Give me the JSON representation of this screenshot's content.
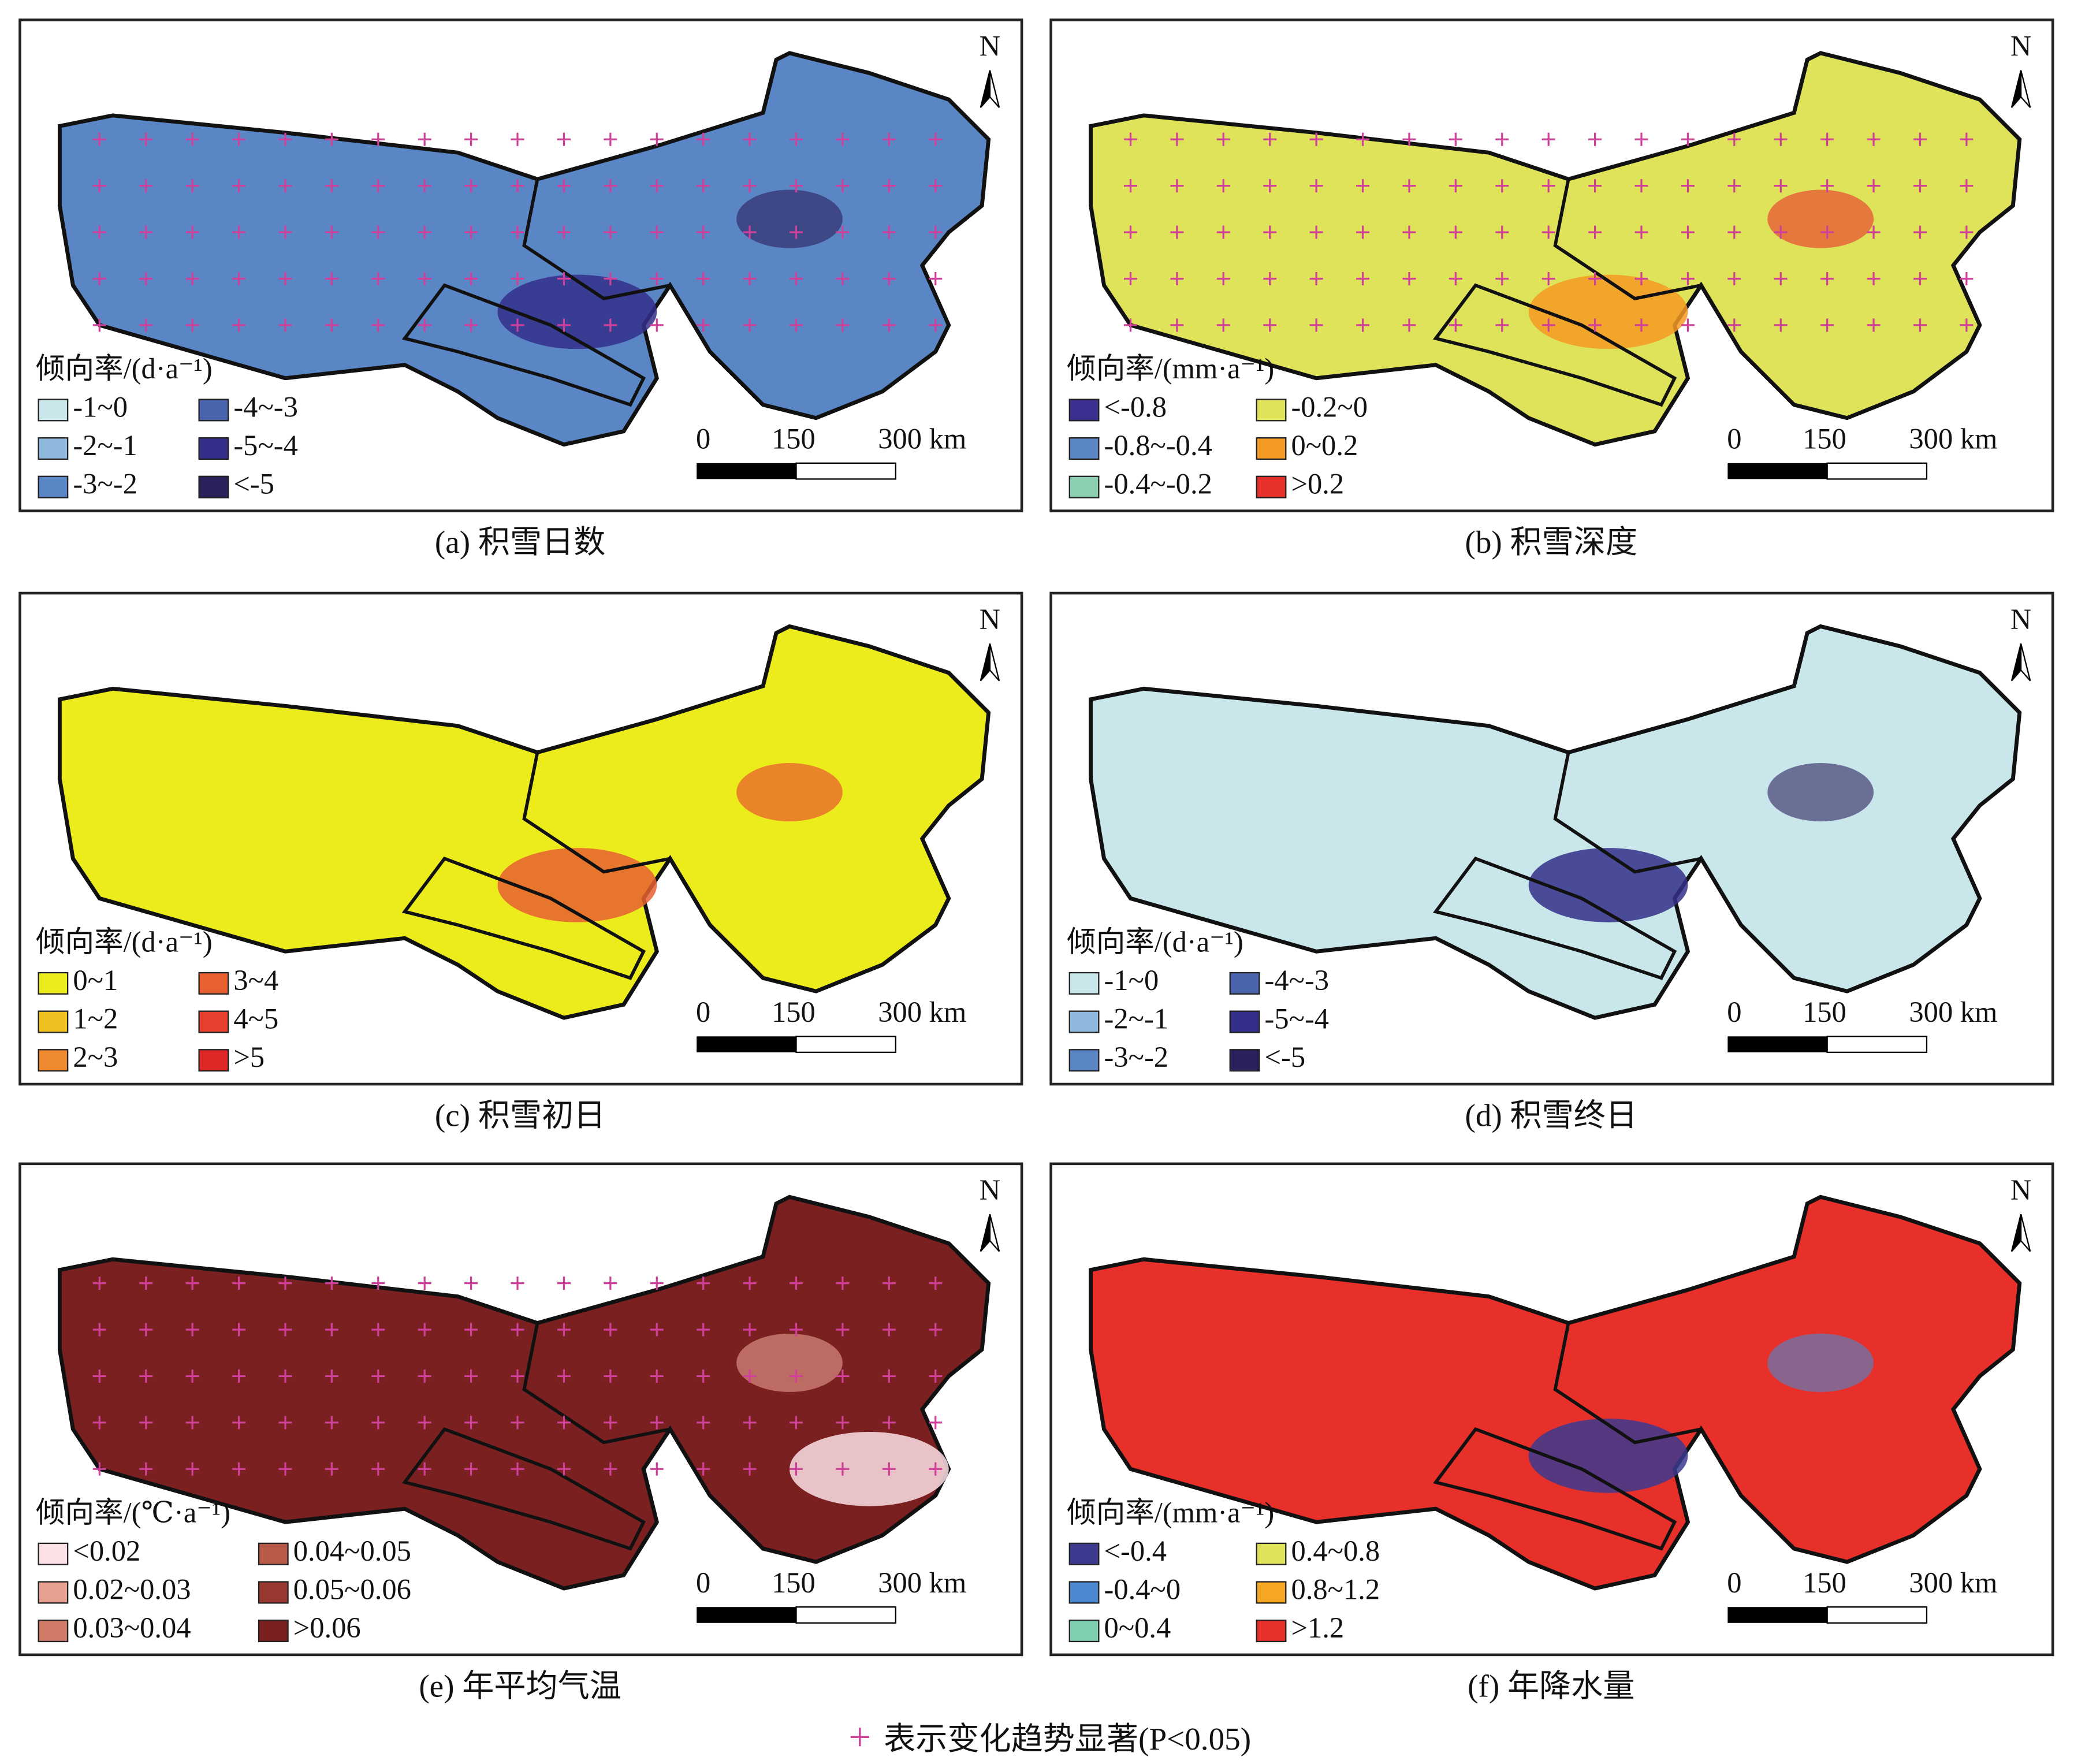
{
  "panels": [
    {
      "caption": "(a) 积雪日数",
      "legend_title": "倾向率/(d·a⁻¹)",
      "legend": [
        {
          "label": "-1~0",
          "color": "#c9e7ea"
        },
        {
          "label": "-2~-1",
          "color": "#8fb9dc"
        },
        {
          "label": "-3~-2",
          "color": "#5b86c5"
        },
        {
          "label": "-4~-3",
          "color": "#4a64ad"
        },
        {
          "label": "-5~-4",
          "color": "#342f8a"
        },
        {
          "label": "<-5",
          "color": "#2b1f5c"
        }
      ],
      "scale": [
        "0",
        "150",
        "300 km"
      ],
      "north": "N"
    },
    {
      "caption": "(b) 积雪深度",
      "legend_title": "倾向率/(mm·a⁻¹)",
      "legend": [
        {
          "label": "<-0.8",
          "color": "#3b2f8f"
        },
        {
          "label": "-0.8~-0.4",
          "color": "#5b86c5"
        },
        {
          "label": "-0.4~-0.2",
          "color": "#8ccfb0"
        },
        {
          "label": "-0.2~0",
          "color": "#dfe35a"
        },
        {
          "label": "0~0.2",
          "color": "#f59a23"
        },
        {
          "label": ">0.2",
          "color": "#e8302a"
        }
      ],
      "scale": [
        "0",
        "150",
        "300 km"
      ],
      "north": "N"
    },
    {
      "caption": "(c) 积雪初日",
      "legend_title": "倾向率/(d·a⁻¹)",
      "legend": [
        {
          "label": "0~1",
          "color": "#ecec1c"
        },
        {
          "label": "1~2",
          "color": "#f0c020"
        },
        {
          "label": "2~3",
          "color": "#f08a30"
        },
        {
          "label": "3~4",
          "color": "#e86030"
        },
        {
          "label": "4~5",
          "color": "#e84030"
        },
        {
          "label": ">5",
          "color": "#e02828"
        }
      ],
      "scale": [
        "0",
        "150",
        "300 km"
      ],
      "north": "N"
    },
    {
      "caption": "(d) 积雪终日",
      "legend_title": "倾向率/(d·a⁻¹)",
      "legend": [
        {
          "label": "-1~0",
          "color": "#c9e7ea"
        },
        {
          "label": "-2~-1",
          "color": "#8fb9dc"
        },
        {
          "label": "-3~-2",
          "color": "#5b86c5"
        },
        {
          "label": "-4~-3",
          "color": "#4a64ad"
        },
        {
          "label": "-5~-4",
          "color": "#342f8a"
        },
        {
          "label": "<-5",
          "color": "#2b1f5c"
        }
      ],
      "scale": [
        "0",
        "150",
        "300 km"
      ],
      "north": "N"
    },
    {
      "caption": "(e) 年平均气温",
      "legend_title": "倾向率/(℃·a⁻¹)",
      "legend": [
        {
          "label": "<0.02",
          "color": "#fbe0e6"
        },
        {
          "label": "0.02~0.03",
          "color": "#e8a090"
        },
        {
          "label": "0.03~0.04",
          "color": "#d07a68"
        },
        {
          "label": "0.04~0.05",
          "color": "#b85a48"
        },
        {
          "label": "0.05~0.06",
          "color": "#983830"
        },
        {
          "label": ">0.06",
          "color": "#7a2020"
        }
      ],
      "scale": [
        "0",
        "150",
        "300 km"
      ],
      "north": "N"
    },
    {
      "caption": "(f) 年降水量",
      "legend_title": "倾向率/(mm·a⁻¹)",
      "legend": [
        {
          "label": "<-0.4",
          "color": "#3b3a8f"
        },
        {
          "label": "-0.4~0",
          "color": "#4a88d0"
        },
        {
          "label": "0~0.4",
          "color": "#7fd0b0"
        },
        {
          "label": "0.4~0.8",
          "color": "#dfe35a"
        },
        {
          "label": "0.8~1.2",
          "color": "#f5a623"
        },
        {
          "label": ">1.2",
          "color": "#e8302a"
        }
      ],
      "scale": [
        "0",
        "150",
        "300 km"
      ],
      "north": "N"
    }
  ],
  "note_symbol": "+",
  "note": "表示变化趋势显著(P<0.05)"
}
